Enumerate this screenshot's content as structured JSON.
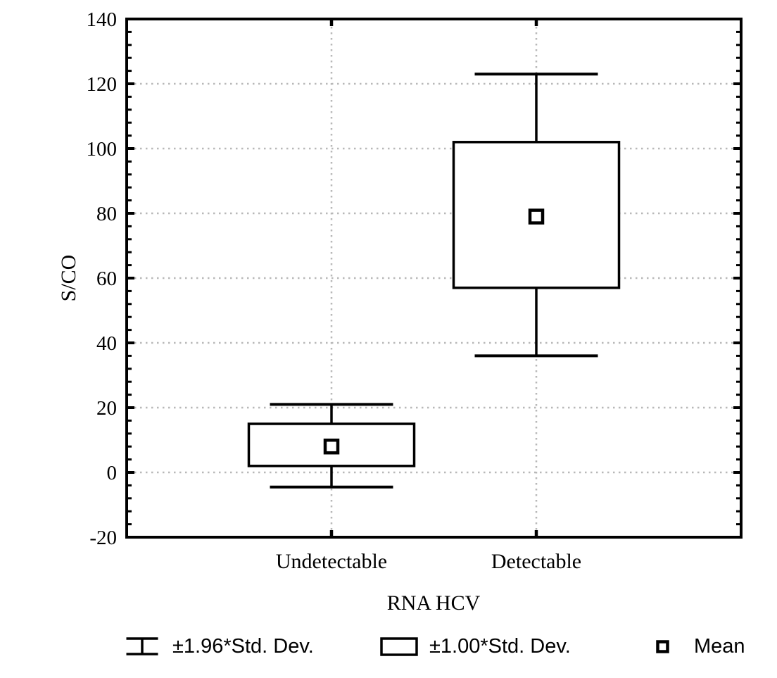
{
  "figure_title": "",
  "axes": {
    "y_title": "S/CO",
    "x_title": "RNA HCV"
  },
  "legend": {
    "items": [
      {
        "icon": "whisker-icon",
        "label": "±1.96*Std. Dev."
      },
      {
        "icon": "box-icon",
        "label": "±1.00*Std. Dev."
      },
      {
        "icon": "mean-square-icon",
        "label": "Mean"
      }
    ]
  },
  "chart_data": {
    "type": "box",
    "title": "",
    "xlabel": "RNA HCV",
    "ylabel": "S/CO",
    "ylim": [
      -20,
      140
    ],
    "ytick_step": 20,
    "yticks": [
      -20,
      0,
      20,
      40,
      60,
      80,
      100,
      120,
      140
    ],
    "minor_tick_step": 4,
    "grid": true,
    "categories": [
      "Undetectable",
      "Detectable"
    ],
    "series": [
      {
        "category": "Undetectable",
        "mean": 8,
        "box_low": 2,
        "box_high": 15,
        "whisker_low": -4.5,
        "whisker_high": 21
      },
      {
        "category": "Detectable",
        "mean": 79,
        "box_low": 57,
        "box_high": 102,
        "whisker_low": 36,
        "whisker_high": 123
      }
    ],
    "box_represents": "±1.00*Std. Dev.",
    "whisker_represents": "±1.96*Std. Dev.",
    "marker_represents": "Mean",
    "legend_position": "bottom",
    "colors": {
      "line": "#000000",
      "grid": "#b8b8b8",
      "background": "#ffffff",
      "box_fill": "#ffffff"
    }
  }
}
